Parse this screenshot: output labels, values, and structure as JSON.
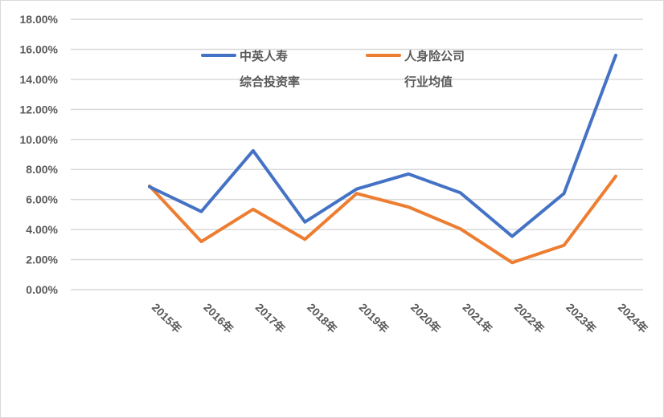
{
  "chart_data": {
    "type": "line",
    "title": "",
    "xlabel": "",
    "ylabel": "",
    "categories": [
      "2015年",
      "2016年",
      "2017年",
      "2018年",
      "2019年",
      "2020年",
      "2021年",
      "2022年",
      "2023年",
      "2024年"
    ],
    "series": [
      {
        "name": "中英人寿综合投资率",
        "legend_lines": [
          "中英人寿",
          "综合投资率"
        ],
        "color": "#4472C4",
        "values": [
          6.85,
          5.2,
          9.25,
          4.5,
          6.7,
          7.7,
          6.45,
          3.55,
          6.4,
          15.6
        ]
      },
      {
        "name": "人身险公司行业均值",
        "legend_lines": [
          "人身险公司",
          "行业均值"
        ],
        "color": "#ED7D31",
        "values": [
          6.9,
          3.2,
          5.35,
          3.35,
          6.4,
          5.5,
          4.05,
          1.8,
          2.95,
          7.55
        ]
      }
    ],
    "ylim": [
      0,
      18
    ],
    "yticks": [
      "0.00%",
      "2.00%",
      "4.00%",
      "6.00%",
      "8.00%",
      "10.00%",
      "12.00%",
      "14.00%",
      "16.00%",
      "18.00%"
    ],
    "grid": true,
    "legend_position": "top-inside"
  }
}
